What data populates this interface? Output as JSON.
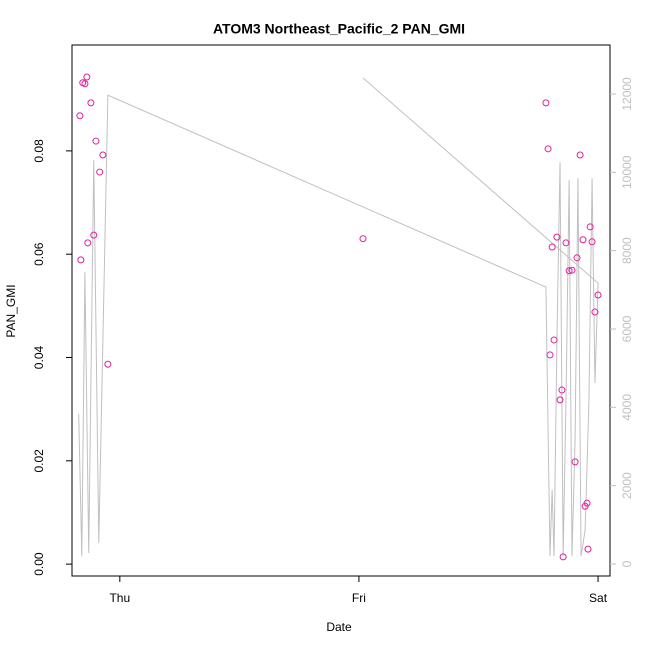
{
  "chart_data": {
    "type": "scatter",
    "title": "ATOM3 Northeast_Pacific_2 PAN_GMI",
    "x_label": "Date",
    "y_label": "PAN_GMI",
    "xlim": [
      -0.2,
      2.05
    ],
    "xticks": [
      {
        "value": 0,
        "label": "Thu"
      },
      {
        "value": 1,
        "label": "Fri"
      },
      {
        "value": 2,
        "label": "Sat"
      }
    ],
    "ylim": [
      -0.0023,
      0.1005
    ],
    "yticks": [
      {
        "value": 0,
        "label": "0.00"
      },
      {
        "value": 0.02,
        "label": "0.02"
      },
      {
        "value": 0.04,
        "label": "0.04"
      },
      {
        "value": 0.06,
        "label": "0.06"
      },
      {
        "value": 0.08,
        "label": "0.08"
      }
    ],
    "y2lim": [
      -306,
      13250
    ],
    "y2ticks": [
      0,
      2000,
      4000,
      6000,
      8000,
      10000,
      12000
    ],
    "series": [
      {
        "type": "scatter",
        "color": "#e0209c",
        "x": [
          -0.167,
          -0.163,
          -0.155,
          -0.146,
          -0.138,
          -0.134,
          -0.121,
          -0.109,
          -0.1,
          -0.084,
          -0.071,
          -0.05,
          1.017,
          1.782,
          1.791,
          1.799,
          1.808,
          1.816,
          1.828,
          1.841,
          1.849,
          1.854,
          1.866,
          1.879,
          1.891,
          1.904,
          1.912,
          1.925,
          1.937,
          1.946,
          1.954,
          1.958,
          1.967,
          1.975,
          1.987,
          2.0
        ],
        "values": [
          0.0868,
          0.0589,
          0.0932,
          0.093,
          0.0943,
          0.0622,
          0.0893,
          0.0637,
          0.0819,
          0.0759,
          0.0792,
          0.0387,
          0.063,
          0.0893,
          0.0804,
          0.0405,
          0.0614,
          0.0434,
          0.0633,
          0.0318,
          0.0337,
          0.0014,
          0.0622,
          0.0568,
          0.0569,
          0.0198,
          0.0593,
          0.0792,
          0.0628,
          0.0112,
          0.0118,
          0.0029,
          0.0653,
          0.0624,
          0.0488,
          0.0521
        ]
      },
      {
        "type": "line",
        "axis": "y2",
        "color": "#c0c0c0",
        "x": [
          -0.172,
          -0.159,
          -0.146,
          -0.13,
          -0.109,
          -0.088,
          -0.05,
          1.782,
          1.799,
          1.808,
          1.816,
          1.828,
          1.841,
          1.854,
          1.866,
          1.879,
          1.891,
          1.904,
          1.916,
          1.929,
          1.946,
          1.962,
          1.975,
          1.987,
          2.0,
          1.017
        ],
        "values": [
          3830,
          200,
          7450,
          280,
          10310,
          540,
          11970,
          7070,
          200,
          1890,
          200,
          5720,
          10260,
          200,
          4190,
          9800,
          200,
          3170,
          9850,
          200,
          870,
          4190,
          9850,
          4620,
          7170,
          12410
        ]
      }
    ]
  }
}
